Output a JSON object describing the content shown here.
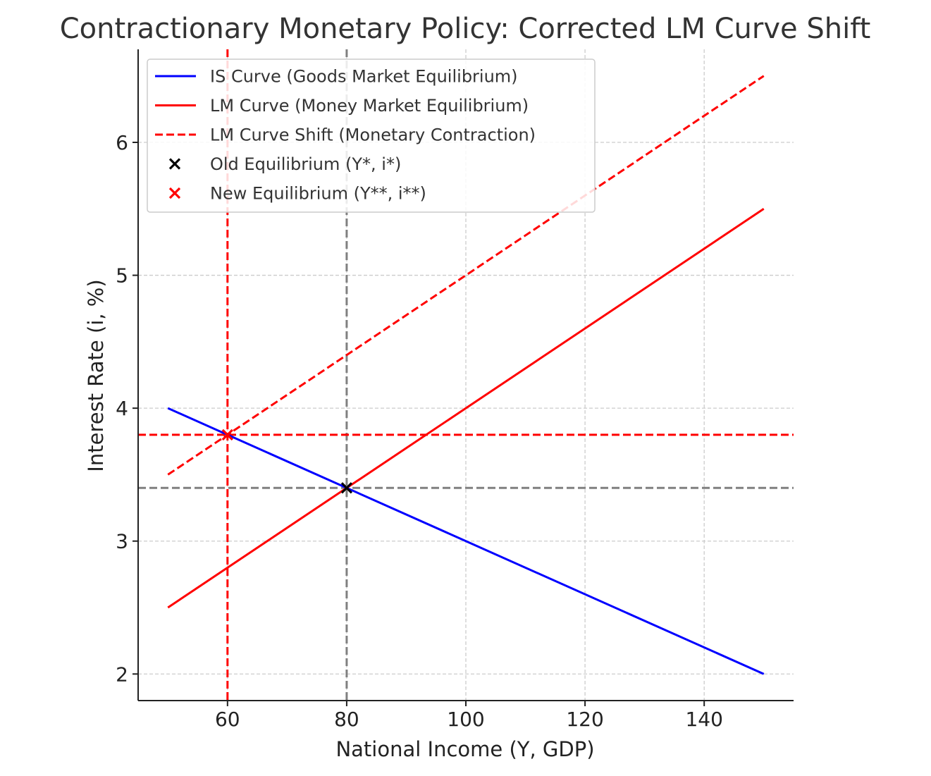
{
  "chart_data": {
    "type": "line",
    "title": "Contractionary Monetary Policy: Corrected LM Curve Shift",
    "xlabel": "National Income (Y, GDP)",
    "ylabel": "Interest Rate (i, %)",
    "xlim": [
      45,
      155
    ],
    "ylim": [
      1.8,
      6.7
    ],
    "xticks": [
      60,
      80,
      100,
      120,
      140
    ],
    "yticks": [
      2,
      3,
      4,
      5,
      6
    ],
    "grid": true,
    "legend_position": "top-left",
    "series": [
      {
        "name": "IS Curve (Goods Market Equilibrium)",
        "style": "solid",
        "color": "#0000ff",
        "x": [
          50,
          150
        ],
        "y": [
          4.0,
          2.0
        ]
      },
      {
        "name": "LM Curve (Money Market Equilibrium)",
        "style": "solid",
        "color": "#ff0000",
        "x": [
          50,
          150
        ],
        "y": [
          2.5,
          5.5
        ]
      },
      {
        "name": "LM Curve Shift (Monetary Contraction)",
        "style": "dashed",
        "color": "#ff0000",
        "x": [
          50,
          150
        ],
        "y": [
          3.5,
          6.5
        ]
      }
    ],
    "points": [
      {
        "name": "Old Equilibrium (Y*, i*)",
        "color": "#000000",
        "x": 80,
        "y": 3.4
      },
      {
        "name": "New Equilibrium (Y**, i**)",
        "color": "#ff0000",
        "x": 60,
        "y": 3.8
      }
    ],
    "reference_lines": [
      {
        "orientation": "vertical",
        "value": 80,
        "color": "#808080"
      },
      {
        "orientation": "horizontal",
        "value": 3.4,
        "color": "#808080"
      },
      {
        "orientation": "vertical",
        "value": 60,
        "color": "#ff0000"
      },
      {
        "orientation": "horizontal",
        "value": 3.8,
        "color": "#ff0000"
      }
    ],
    "legend": [
      {
        "label": "IS Curve (Goods Market Equilibrium)",
        "marker": "line-solid",
        "color": "#0000ff"
      },
      {
        "label": "LM Curve (Money Market Equilibrium)",
        "marker": "line-solid",
        "color": "#ff0000"
      },
      {
        "label": "LM Curve Shift (Monetary Contraction)",
        "marker": "line-dashed",
        "color": "#ff0000"
      },
      {
        "label": "Old Equilibrium (Y*, i*)",
        "marker": "x",
        "color": "#000000"
      },
      {
        "label": "New Equilibrium (Y**, i**)",
        "marker": "x",
        "color": "#ff0000"
      }
    ]
  }
}
